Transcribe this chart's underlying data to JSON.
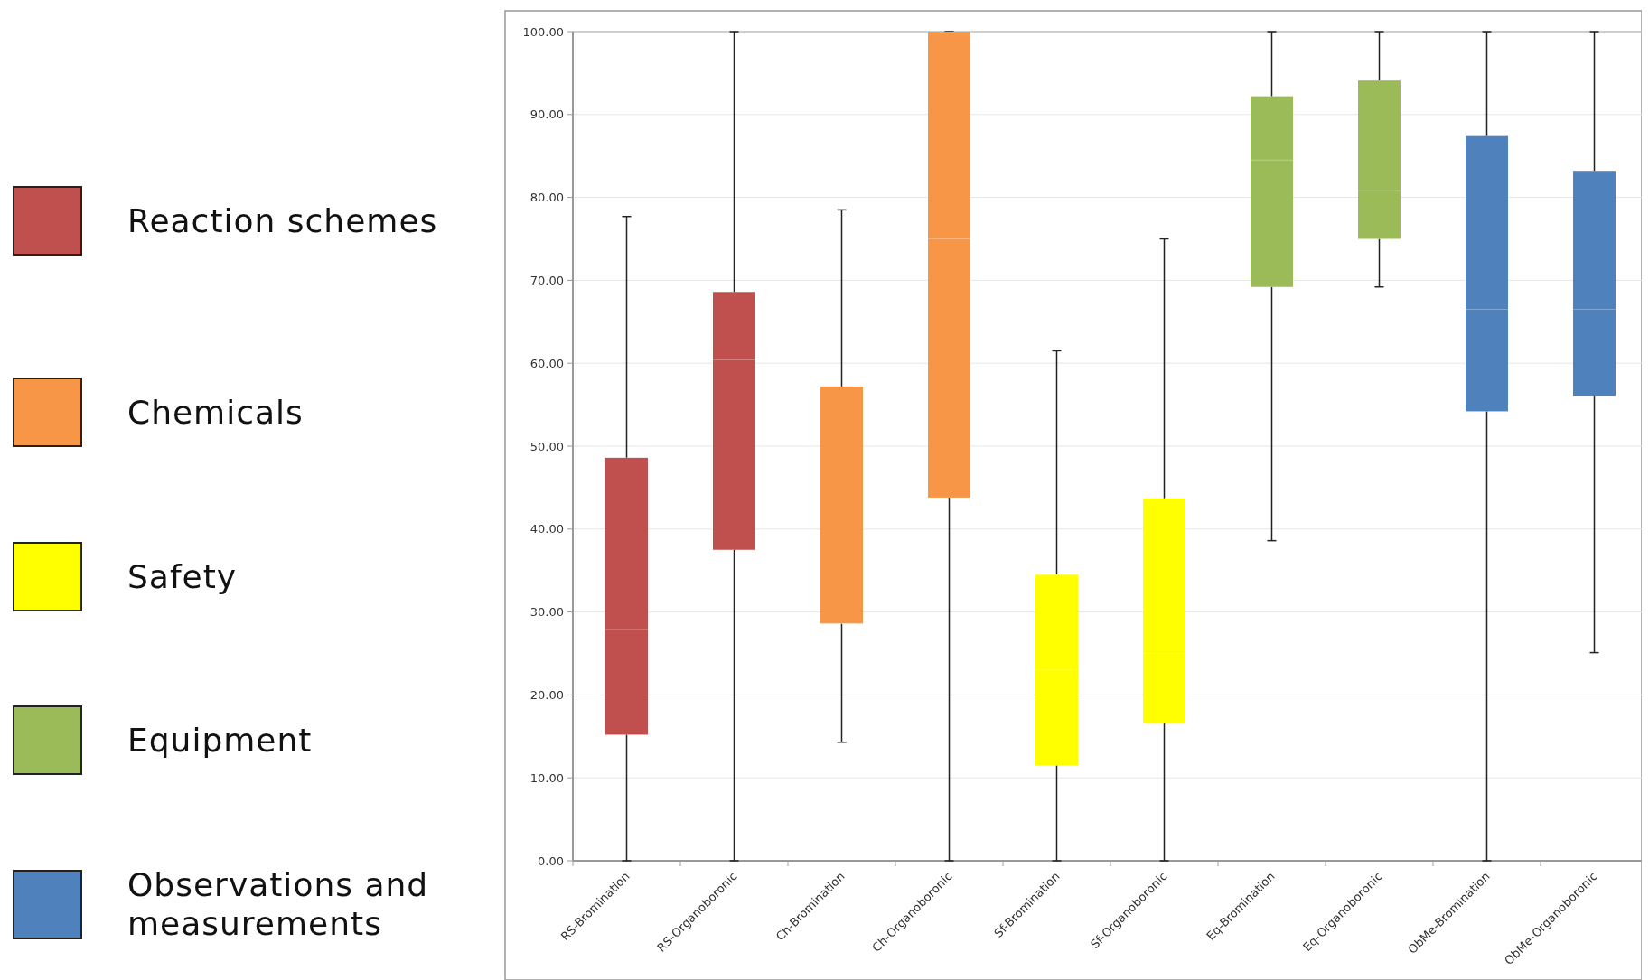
{
  "chart_data": {
    "type": "box",
    "categories": [
      "RS-Bromination",
      "RS-Organoboronic",
      "Ch-Bromination",
      "Ch-Organoboronic",
      "Sf-Bromination",
      "Sf-Organoboronic",
      "Eq-Bromination",
      "Eq-Organoboronic",
      "ObMe-Bromination",
      "ObMe-Organoboronic"
    ],
    "series": [
      {
        "name": "Reaction schemes",
        "color": "#c0504d",
        "boxes": [
          {
            "low": 0,
            "q1": 15.2,
            "median": 27.9,
            "q3": 48.6,
            "high": 77.7
          },
          {
            "low": 0,
            "q1": 37.5,
            "median": 60.4,
            "q3": 68.6,
            "high": 100
          },
          null,
          null,
          null,
          null,
          null,
          null,
          null,
          null
        ]
      },
      {
        "name": "Chemicals",
        "color": "#f79646",
        "boxes": [
          null,
          null,
          {
            "low": 14.3,
            "q1": 28.6,
            "median": 28.6,
            "q3": 57.2,
            "high": 78.5
          },
          {
            "low": 0,
            "q1": 43.8,
            "median": 75,
            "q3": 100,
            "high": 100
          },
          null,
          null,
          null,
          null,
          null,
          null
        ]
      },
      {
        "name": "Safety",
        "color": "#ffff00",
        "boxes": [
          null,
          null,
          null,
          null,
          {
            "low": 0,
            "q1": 11.5,
            "median": 23,
            "q3": 34.5,
            "high": 61.5
          },
          {
            "low": 0,
            "q1": 16.6,
            "median": 25,
            "q3": 43.7,
            "high": 75
          },
          null,
          null,
          null,
          null
        ]
      },
      {
        "name": "Equipment",
        "color": "#9bbb59",
        "boxes": [
          null,
          null,
          null,
          null,
          null,
          null,
          {
            "low": 38.6,
            "q1": 69.2,
            "median": 84.5,
            "q3": 92.2,
            "high": 100
          },
          {
            "low": 69.2,
            "q1": 75,
            "median": 80.8,
            "q3": 94.1,
            "high": 100
          },
          null,
          null
        ]
      },
      {
        "name": "Observations and measurements",
        "color": "#4f81bd",
        "boxes": [
          null,
          null,
          null,
          null,
          null,
          null,
          null,
          null,
          {
            "low": 0,
            "q1": 54.2,
            "median": 66.5,
            "q3": 87.4,
            "high": 100
          },
          {
            "low": 25.1,
            "q1": 56.1,
            "median": 66.5,
            "q3": 83.2,
            "high": 100
          }
        ]
      }
    ],
    "ylim": [
      0,
      100
    ],
    "yticks": [
      {
        "value": 0,
        "label": "0.00"
      },
      {
        "value": 10,
        "label": "10.00"
      },
      {
        "value": 20,
        "label": "20.00"
      },
      {
        "value": 30,
        "label": "30.00"
      },
      {
        "value": 40,
        "label": "40.00"
      },
      {
        "value": 50,
        "label": "50.00"
      },
      {
        "value": 60,
        "label": "60.00"
      },
      {
        "value": 70,
        "label": "70.00"
      },
      {
        "value": 80,
        "label": "80.00"
      },
      {
        "value": 90,
        "label": "90.00"
      },
      {
        "value": 100,
        "label": "100.00"
      }
    ],
    "grid": "y",
    "legend": "left"
  }
}
